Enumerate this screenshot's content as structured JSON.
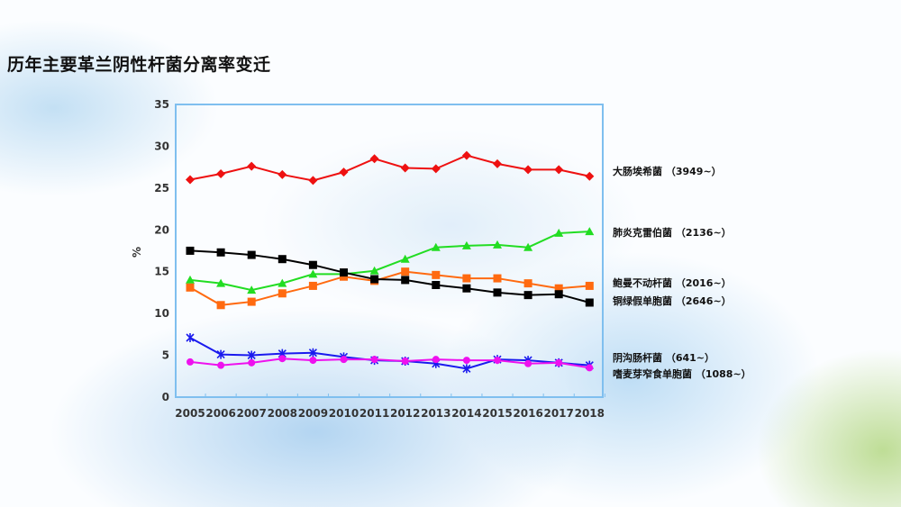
{
  "title": "历年主要革兰阴性杆菌分离率变迁",
  "chart_data": {
    "type": "line",
    "title": "历年主要革兰阴性杆菌分离率变迁",
    "xlabel": "",
    "ylabel": "%",
    "ylim": [
      0,
      35
    ],
    "yticks": [
      "0",
      "5",
      "10",
      "15",
      "20",
      "25",
      "30",
      "35"
    ],
    "categories": [
      "2005",
      "2006",
      "2007",
      "2008",
      "2009",
      "2010",
      "2011",
      "2012",
      "2013",
      "2014",
      "2015",
      "2016",
      "2017",
      "2018"
    ],
    "grid": false,
    "legend_placement": "right",
    "series": [
      {
        "name": "大肠埃希菌 （3949~）",
        "color": "#ee1111",
        "marker": "diamond",
        "values": [
          25.9,
          26.6,
          27.5,
          26.5,
          25.8,
          26.8,
          28.4,
          27.3,
          27.2,
          28.8,
          27.8,
          27.1,
          27.1,
          26.3
        ]
      },
      {
        "name": "肺炎克雷伯菌 （2136~）",
        "color": "#22dd22",
        "marker": "triangle",
        "values": [
          13.9,
          13.5,
          12.7,
          13.5,
          14.6,
          14.6,
          15.0,
          16.4,
          17.8,
          18.0,
          18.1,
          17.8,
          19.5,
          19.7
        ]
      },
      {
        "name": "鲍曼不动杆菌 （2016~）",
        "color": "#ff6a10",
        "marker": "square",
        "values": [
          13.0,
          10.9,
          11.3,
          12.3,
          13.2,
          14.3,
          13.8,
          14.9,
          14.5,
          14.1,
          14.1,
          13.5,
          12.9,
          13.2
        ]
      },
      {
        "name": "铜绿假单胞菌 （2646~）",
        "color": "#000000",
        "marker": "square",
        "values": [
          17.4,
          17.2,
          16.9,
          16.4,
          15.7,
          14.8,
          14.0,
          13.9,
          13.3,
          12.9,
          12.4,
          12.1,
          12.2,
          11.2
        ]
      },
      {
        "name": "阴沟肠杆菌 （641~）",
        "color": "#1a1aee",
        "marker": "star",
        "values": [
          7.0,
          5.0,
          4.9,
          5.1,
          5.2,
          4.7,
          4.3,
          4.2,
          3.9,
          3.3,
          4.4,
          4.3,
          4.0,
          3.7
        ]
      },
      {
        "name": "嗜麦芽窄食单胞菌 （1088~）",
        "color": "#ee11ee",
        "marker": "circle",
        "values": [
          4.1,
          3.7,
          4.0,
          4.5,
          4.3,
          4.4,
          4.4,
          4.2,
          4.4,
          4.3,
          4.3,
          3.9,
          4.0,
          3.4
        ]
      }
    ]
  }
}
